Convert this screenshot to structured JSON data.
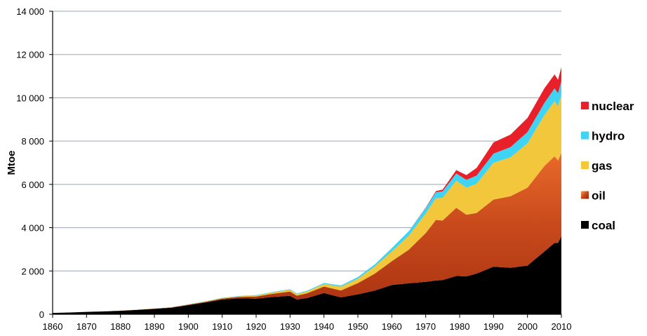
{
  "chart_data": {
    "type": "area",
    "stacked": true,
    "ylabel": "Mtoe",
    "xlabel": "",
    "xlim": [
      1860,
      2010
    ],
    "ylim": [
      0,
      14000
    ],
    "grid": true,
    "legend_position": "right",
    "x_ticks": [
      "1860",
      "1870",
      "1880",
      "1890",
      "1900",
      "1910",
      "1920",
      "1930",
      "1940",
      "1950",
      "1960",
      "1970",
      "1980",
      "1990",
      "2000",
      "2010"
    ],
    "y_ticks": [
      "0",
      "2 000",
      "4 000",
      "6 000",
      "8 000",
      "10 000",
      "12 000",
      "14 000"
    ],
    "x": [
      1860,
      1865,
      1870,
      1875,
      1880,
      1885,
      1890,
      1895,
      1900,
      1905,
      1910,
      1915,
      1920,
      1925,
      1930,
      1932,
      1935,
      1940,
      1945,
      1950,
      1955,
      1960,
      1965,
      1970,
      1973,
      1975,
      1979,
      1982,
      1985,
      1990,
      1995,
      2000,
      2005,
      2008,
      2009,
      2010
    ],
    "series": [
      {
        "name": "coal",
        "color": "#000000",
        "values": [
          60,
          80,
          110,
          130,
          160,
          200,
          250,
          300,
          420,
          540,
          680,
          740,
          720,
          800,
          850,
          680,
          750,
          980,
          780,
          920,
          1100,
          1350,
          1430,
          1500,
          1560,
          1580,
          1770,
          1750,
          1880,
          2200,
          2150,
          2250,
          2900,
          3300,
          3300,
          3600
        ]
      },
      {
        "name": "oil",
        "color": "#d2511a",
        "values": [
          0,
          0,
          0,
          2,
          5,
          8,
          10,
          15,
          20,
          30,
          45,
          60,
          100,
          150,
          200,
          180,
          220,
          300,
          320,
          520,
          780,
          1100,
          1550,
          2250,
          2800,
          2750,
          3150,
          2850,
          2800,
          3100,
          3300,
          3600,
          3950,
          4000,
          3800,
          3850
        ]
      },
      {
        "name": "gas",
        "color": "#f2c73c",
        "values": [
          0,
          0,
          0,
          1,
          3,
          5,
          8,
          10,
          15,
          20,
          25,
          30,
          40,
          60,
          80,
          70,
          80,
          120,
          170,
          200,
          330,
          450,
          650,
          900,
          1000,
          1050,
          1250,
          1250,
          1350,
          1700,
          1800,
          2050,
          2350,
          2550,
          2500,
          2700
        ]
      },
      {
        "name": "hydro",
        "color": "#3fd4f4",
        "values": [
          0,
          0,
          0,
          0,
          0,
          0,
          1,
          2,
          4,
          8,
          12,
          15,
          20,
          25,
          30,
          30,
          35,
          45,
          60,
          80,
          100,
          150,
          200,
          260,
          280,
          300,
          330,
          360,
          380,
          420,
          470,
          520,
          560,
          590,
          610,
          630
        ]
      },
      {
        "name": "nuclear",
        "color": "#e8202a",
        "values": [
          0,
          0,
          0,
          0,
          0,
          0,
          0,
          0,
          0,
          0,
          0,
          0,
          0,
          0,
          0,
          0,
          0,
          0,
          0,
          0,
          0,
          2,
          6,
          20,
          50,
          80,
          160,
          220,
          350,
          520,
          580,
          650,
          680,
          640,
          620,
          640
        ]
      }
    ],
    "legend_order": [
      "nuclear",
      "hydro",
      "gas",
      "oil",
      "coal"
    ]
  }
}
